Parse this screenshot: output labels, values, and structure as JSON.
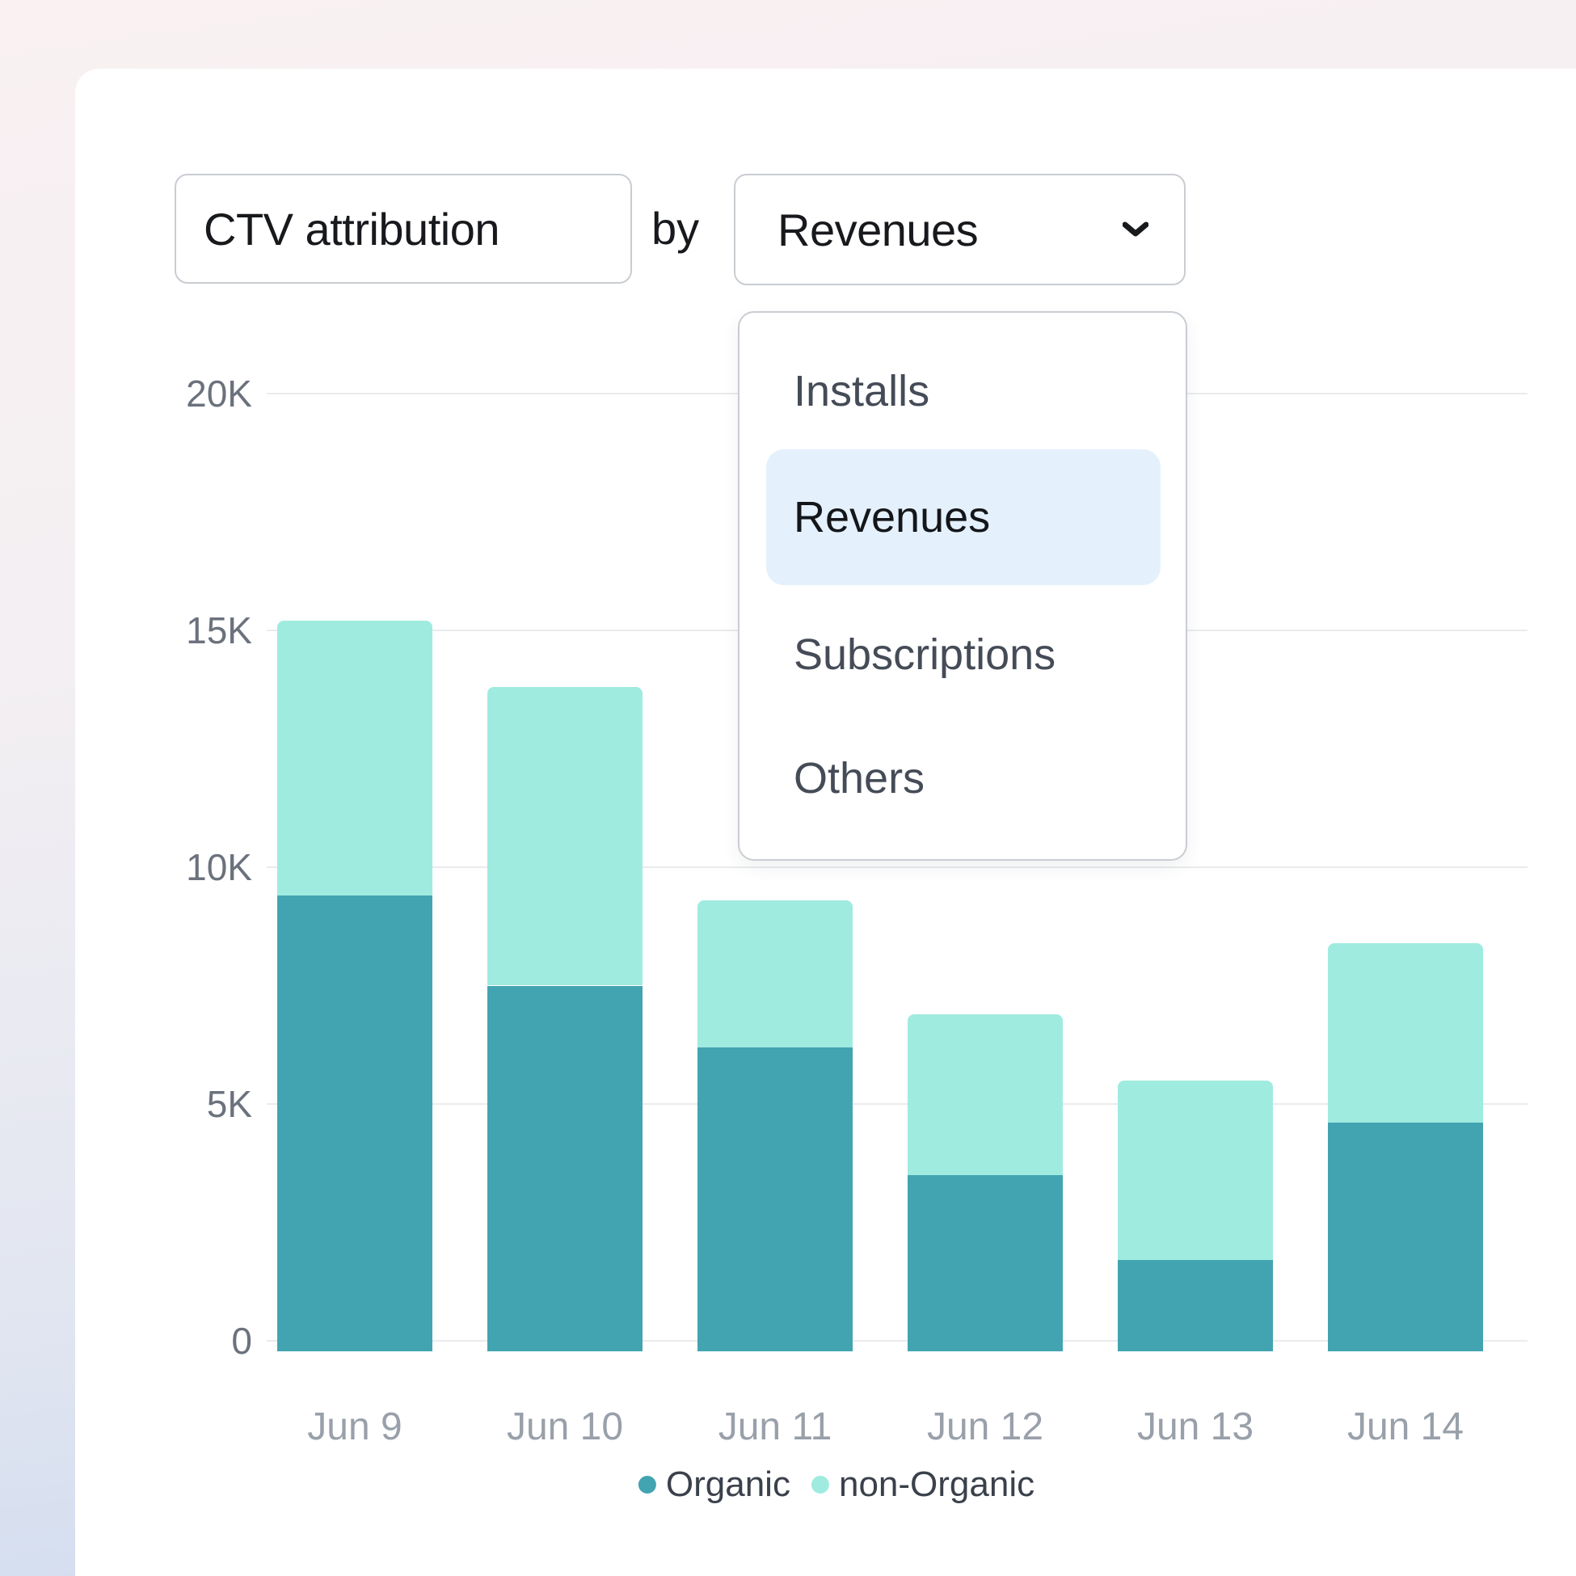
{
  "header": {
    "title": "CTV attribution",
    "by_label": "by",
    "selected_metric": "Revenues",
    "chevron_icon": "chevron-down"
  },
  "dropdown": {
    "items": [
      {
        "label": "Installs",
        "selected": false
      },
      {
        "label": "Revenues",
        "selected": true
      },
      {
        "label": "Subscriptions",
        "selected": false
      },
      {
        "label": "Others",
        "selected": false
      }
    ],
    "highlight_color": "#e4f1fd"
  },
  "chart_data": {
    "type": "bar",
    "stacked": true,
    "title": "CTV attribution by Revenues",
    "categories": [
      "Jun 9",
      "Jun 10",
      "Jun 11",
      "Jun 12",
      "Jun 13",
      "Jun 14"
    ],
    "series": [
      {
        "name": "Organic",
        "color": "#42a4b1",
        "values": [
          9400,
          7500,
          6200,
          3500,
          1700,
          4600
        ]
      },
      {
        "name": "non-Organic",
        "color": "#a0ebe0",
        "values": [
          5800,
          6300,
          3100,
          3400,
          3800,
          3800
        ]
      }
    ],
    "totals": [
      15200,
      13800,
      9300,
      6900,
      5500,
      8400
    ],
    "ylim": [
      0,
      20000
    ],
    "yticks": [
      {
        "value": 0,
        "label": "0"
      },
      {
        "value": 5000,
        "label": "5K"
      },
      {
        "value": 10000,
        "label": "10K"
      },
      {
        "value": 15000,
        "label": "15K"
      },
      {
        "value": 20000,
        "label": "20K"
      }
    ],
    "grid": "horizontal",
    "legend_position": "bottom"
  },
  "legend": [
    {
      "label": "Organic",
      "color": "#42a4b1"
    },
    {
      "label": "non-Organic",
      "color": "#a0ebe0"
    }
  ],
  "colors": {
    "organic": "#42a4b1",
    "non_organic": "#a0ebe0",
    "grid": "#e9ebed",
    "border": "#c9cdd2",
    "card": "#ffffff"
  }
}
